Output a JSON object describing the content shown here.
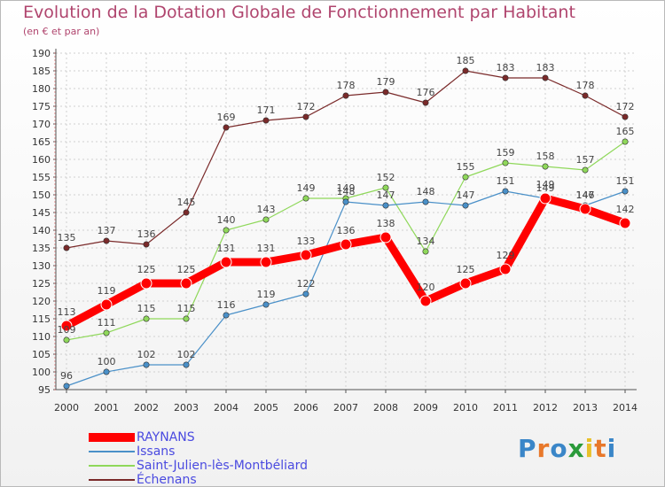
{
  "chart_data": {
    "type": "line",
    "title": "Evolution de la Dotation Globale de Fonctionnement par Habitant",
    "subtitle": "(en € et par an)",
    "x": [
      "2000",
      "2001",
      "2002",
      "2003",
      "2004",
      "2005",
      "2006",
      "2007",
      "2008",
      "2009",
      "2010",
      "2011",
      "2012",
      "2013",
      "2014"
    ],
    "ylim": [
      95,
      190
    ],
    "yticks": [
      95,
      100,
      105,
      110,
      115,
      120,
      125,
      130,
      135,
      140,
      145,
      150,
      155,
      160,
      165,
      170,
      175,
      180,
      185,
      190
    ],
    "grid": true,
    "legend_position": "bottom-left",
    "series": [
      {
        "name": "RAYNANS",
        "color": "#ff0000",
        "values": [
          113,
          119,
          125,
          125,
          131,
          131,
          133,
          136,
          138,
          120,
          125,
          129,
          149,
          146,
          142
        ]
      },
      {
        "name": "Issans",
        "color": "#4a90c8",
        "values": [
          96,
          100,
          102,
          102,
          116,
          119,
          122,
          148,
          147,
          148,
          147,
          151,
          149,
          147,
          151
        ]
      },
      {
        "name": "Saint-Julien-lès-Montbéliard",
        "color": "#8fd85a",
        "values": [
          109,
          111,
          115,
          115,
          140,
          143,
          149,
          149,
          152,
          134,
          155,
          159,
          158,
          157,
          165
        ]
      },
      {
        "name": "Échenans",
        "color": "#7a2a2a",
        "values": [
          135,
          137,
          136,
          145,
          169,
          171,
          172,
          178,
          179,
          176,
          185,
          183,
          183,
          178,
          172
        ]
      }
    ]
  },
  "logo": {
    "letters": [
      "P",
      "r",
      "o",
      "x",
      "i",
      "t",
      "i"
    ],
    "colors": [
      "#3a86c8",
      "#e8782a",
      "#3a86c8",
      "#2a9a3a",
      "#e8c02a",
      "#e8782a",
      "#3a86c8"
    ]
  }
}
